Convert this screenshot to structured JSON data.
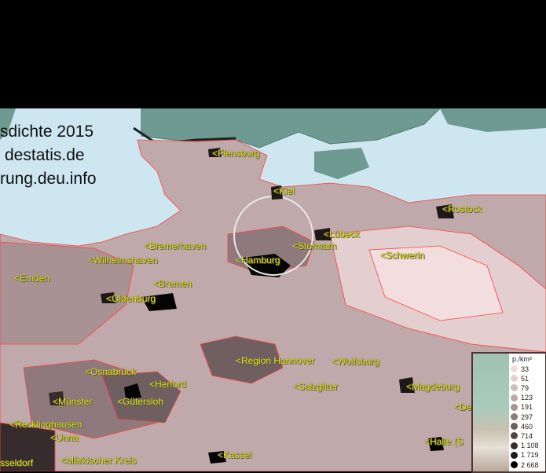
{
  "title_lines": [
    "sdichte 2015",
    "destatis.de",
    "rung.deu.info"
  ],
  "places": [
    {
      "name": "<Flensburg"
    },
    {
      "name": "<Kiel"
    },
    {
      "name": "<Rostock"
    },
    {
      "name": "<Lübeck"
    },
    {
      "name": "<Stormarn"
    },
    {
      "name": "<Schwerin"
    },
    {
      "name": "<Hamburg"
    },
    {
      "name": "<Wilhelmshaven"
    },
    {
      "name": "<Bremerhaven"
    },
    {
      "name": "<Emden"
    },
    {
      "name": "<Oldenburg"
    },
    {
      "name": "<Bremen"
    },
    {
      "name": "<Region Hannover"
    },
    {
      "name": "<Wolfsburg"
    },
    {
      "name": "<Salzgitter"
    },
    {
      "name": "<Magdeburg"
    },
    {
      "name": "<Osnabrück"
    },
    {
      "name": "<Herford"
    },
    {
      "name": "<Münster"
    },
    {
      "name": "<Gütersloh"
    },
    {
      "name": "<Recklinghausen"
    },
    {
      "name": "<Unna"
    },
    {
      "name": "sseldorf"
    },
    {
      "name": "<Märkischer Kreis"
    },
    {
      "name": "<Kassel"
    },
    {
      "name": "<Halle (S"
    },
    {
      "name": "<De"
    }
  ],
  "legend": {
    "unit": "p./km²",
    "items": [
      {
        "label": "33",
        "color": "#f2dede"
      },
      {
        "label": "51",
        "color": "#e3cfd0"
      },
      {
        "label": "79",
        "color": "#d2bcbe"
      },
      {
        "label": "123",
        "color": "#bfa9ab"
      },
      {
        "label": "191",
        "color": "#a89294"
      },
      {
        "label": "297",
        "color": "#8e7a7c"
      },
      {
        "label": "460",
        "color": "#6f5f60"
      },
      {
        "label": "714",
        "color": "#524546"
      },
      {
        "label": "1 108",
        "color": "#372c2d"
      },
      {
        "label": "1 719",
        "color": "#1f1818"
      },
      {
        "label": "2 668",
        "color": "#050404"
      }
    ]
  },
  "colors": {
    "sea": "#cde6f0",
    "border": "#ff4040",
    "label": "#e8e800",
    "foreign_land": "#6e9a92"
  }
}
